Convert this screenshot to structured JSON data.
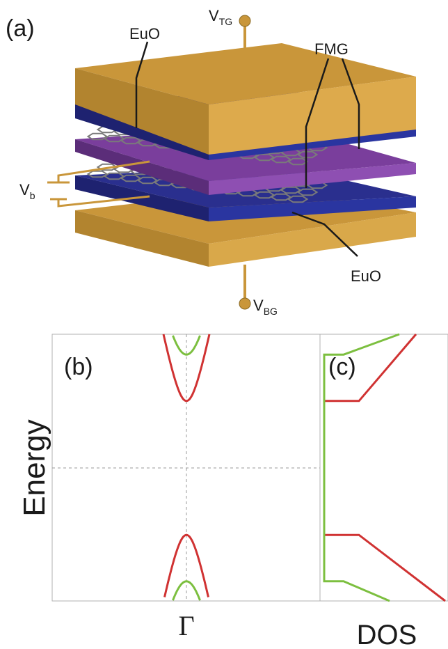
{
  "panel_a": {
    "tag": "(a)",
    "labels": {
      "vtg_main": "V",
      "vtg_sub": "TG",
      "vbg_main": "V",
      "vbg_sub": "BG",
      "vb_main": "V",
      "vb_sub": "b",
      "euo_top": "EuO",
      "euo_bottom": "EuO",
      "fmg": "FMG"
    },
    "colors": {
      "gold": "#C9963A",
      "gold_side": "#A87B2B",
      "blue": "#1E2A7A",
      "purple": "#6A3A8C",
      "lattice": "#777777"
    }
  },
  "panel_b": {
    "tag": "(b)",
    "ylabel": "Energy",
    "xtick": "Γ"
  },
  "panel_c": {
    "tag": "(c)",
    "xlabel": "DOS"
  },
  "chart_data": [
    {
      "type": "line",
      "title": "(b)",
      "ylabel": "Energy",
      "xlabel": "",
      "x_ticks": [
        "Γ"
      ],
      "series": [
        {
          "color": "#D03232",
          "gap_half": 0.52,
          "mass": 0.55
        },
        {
          "color": "#7CBF3F",
          "gap_half": 0.88,
          "mass": 0.55
        }
      ],
      "grid": false
    },
    {
      "type": "line",
      "title": "(c)",
      "xlabel": "DOS",
      "series": [
        {
          "color": "#D03232",
          "gap_half": 0.52
        },
        {
          "color": "#7CBF3F",
          "gap_half": 0.88
        }
      ]
    }
  ]
}
